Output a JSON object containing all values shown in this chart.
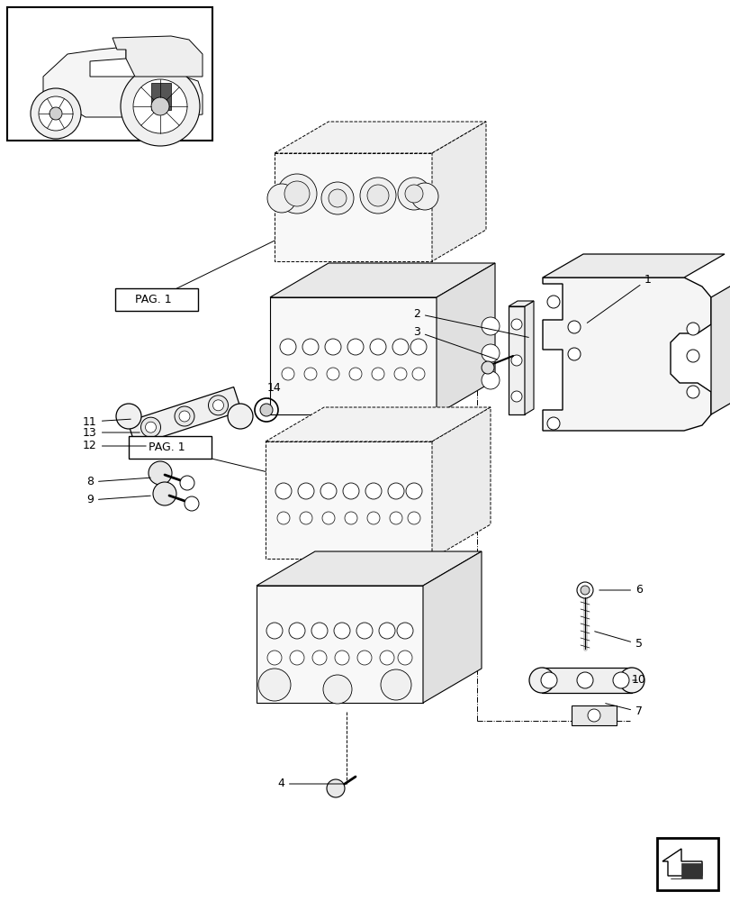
{
  "bg_color": "#ffffff",
  "lc": "#000000",
  "fig_w": 8.12,
  "fig_h": 10.0,
  "dpi": 100
}
